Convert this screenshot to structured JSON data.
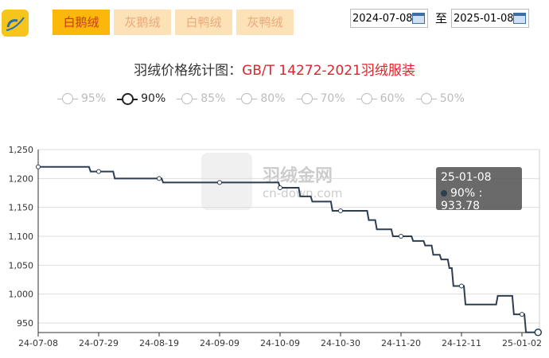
{
  "header": {
    "logo": "羽绒金网",
    "tabs": [
      {
        "label": "白鹅绒",
        "active": true
      },
      {
        "label": "灰鹅绒"
      },
      {
        "label": "白鸭绒"
      },
      {
        "label": "灰鸭绒"
      }
    ],
    "date_from": "2024-07-08",
    "date_sep": "至",
    "date_to": "2025-01-08"
  },
  "chart_data": {
    "type": "line",
    "title_prefix": "羽绒价格统计图：",
    "title_highlight": "GB/T 14272-2021羽绒服装",
    "legend": [
      {
        "name": "95%",
        "active": false
      },
      {
        "name": "90%",
        "active": true
      },
      {
        "name": "85%",
        "active": false
      },
      {
        "name": "80%",
        "active": false
      },
      {
        "name": "70%",
        "active": false
      },
      {
        "name": "60%",
        "active": false
      },
      {
        "name": "50%",
        "active": false
      }
    ],
    "categories_ticks": [
      "24-07-08",
      "24-07-29",
      "24-08-19",
      "24-09-09",
      "24-10-09",
      "24-10-30",
      "24-11-20",
      "24-12-11",
      "25-01-02"
    ],
    "y_ticks": [
      "1,250",
      "1,200",
      "1,150",
      "1,100",
      "1,050",
      "1,000",
      "950"
    ],
    "ylim": [
      933,
      1250
    ],
    "grid": true,
    "line_color": "#2d3e50",
    "series": [
      {
        "name": "90%",
        "steps": [
          [
            0,
            1220
          ],
          [
            13,
            1212
          ],
          [
            19,
            1200
          ],
          [
            31,
            1193
          ],
          [
            60,
            1184
          ],
          [
            65,
            1169
          ],
          [
            68,
            1160
          ],
          [
            73,
            1144
          ],
          [
            82,
            1128
          ],
          [
            84,
            1112
          ],
          [
            88,
            1100
          ],
          [
            93,
            1092
          ],
          [
            96,
            1084
          ],
          [
            98,
            1068
          ],
          [
            100,
            1060
          ],
          [
            102,
            1045
          ],
          [
            103,
            1014
          ],
          [
            106,
            982
          ],
          [
            114,
            997
          ],
          [
            118,
            965
          ],
          [
            121,
            933.78
          ],
          [
            124,
            933.78
          ]
        ]
      }
    ],
    "tooltip": {
      "date": "25-01-08",
      "label": "90% : 933.78"
    },
    "watermark": {
      "name": "羽绒金网",
      "url": "cn-down.com"
    }
  }
}
